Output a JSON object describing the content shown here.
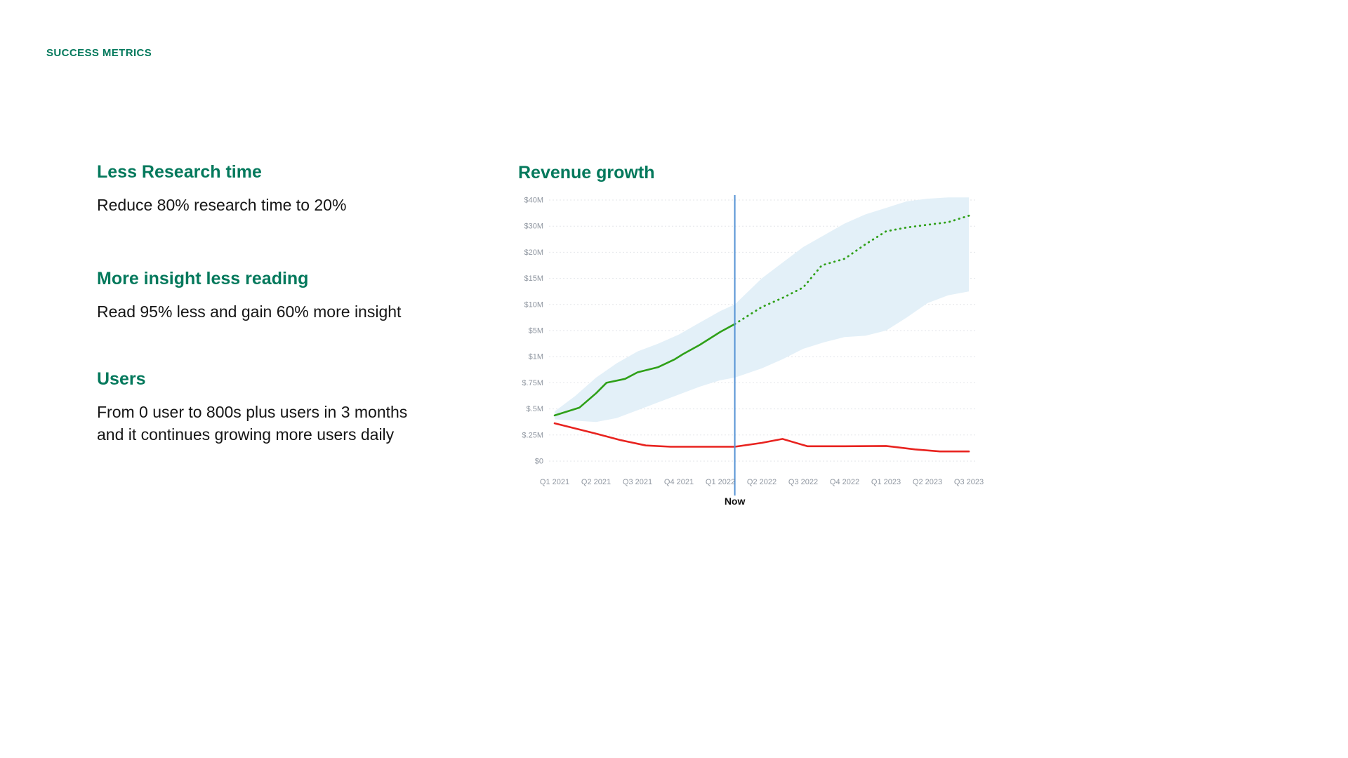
{
  "slide": {
    "eyebrow": "SUCCESS METRICS",
    "metrics": [
      {
        "title": "Less Research time",
        "body": "Reduce 80% research time to 20%"
      },
      {
        "title": "More insight less reading",
        "body": "Read 95% less and gain 60% more insight"
      },
      {
        "title": "Users",
        "body": "From 0 user to 800s plus users in 3 months and it continues growing more users daily"
      }
    ],
    "chart_title": "Revenue growth"
  },
  "colors": {
    "accent": "#04795c",
    "text": "#161616",
    "axis_label": "#9097a1",
    "grid": "#e3e6e9",
    "band_fill": "#e3f0f8",
    "green_line": "#2fa018",
    "red_line": "#e8231f",
    "now_line": "#5693d4",
    "now_label": "#111111"
  },
  "chart_data": {
    "type": "line",
    "title": "Revenue growth",
    "categories": [
      "Q1 2021",
      "Q2 2021",
      "Q3 2021",
      "Q4 2021",
      "Q1 2022",
      "Q2 2022",
      "Q3 2022",
      "Q4 2022",
      "Q1 2023",
      "Q2 2023",
      "Q3 2023"
    ],
    "y_tick_labels": [
      "$0",
      "$.25M",
      "$.5M",
      "$.75M",
      "$1M",
      "$5M",
      "$10M",
      "$15M",
      "$20M",
      "$30M",
      "$40M"
    ],
    "y_axis_note": "non-linear ordinal dollar axis; series point values below are expressed in tick units (0 = $0 tick ... 10 = $40M tick)",
    "grid": true,
    "legend": "none (series are unlabeled in the chart)",
    "now_marker": {
      "label": "Now",
      "x_index": 4.35
    },
    "series": [
      {
        "name": "green-line-actual",
        "style": "solid",
        "color_key": "green_line",
        "width": 2.6,
        "points": [
          [
            0,
            1.75
          ],
          [
            0.6,
            2.05
          ],
          [
            1.0,
            2.6
          ],
          [
            1.25,
            3.0
          ],
          [
            1.7,
            3.15
          ],
          [
            2.0,
            3.4
          ],
          [
            2.5,
            3.6
          ],
          [
            2.9,
            3.9
          ],
          [
            3.1,
            4.1
          ],
          [
            3.5,
            4.45
          ],
          [
            4.0,
            4.95
          ],
          [
            4.35,
            5.25
          ]
        ]
      },
      {
        "name": "green-line-projected",
        "style": "dotted",
        "color_key": "green_line",
        "width": 2.8,
        "points": [
          [
            4.35,
            5.25
          ],
          [
            5.0,
            5.9
          ],
          [
            5.5,
            6.25
          ],
          [
            6.0,
            6.65
          ],
          [
            6.45,
            7.5
          ],
          [
            7.0,
            7.75
          ],
          [
            7.5,
            8.3
          ],
          [
            8.0,
            8.8
          ],
          [
            8.5,
            8.95
          ],
          [
            9.0,
            9.05
          ],
          [
            9.5,
            9.15
          ],
          [
            10,
            9.4
          ]
        ]
      },
      {
        "name": "red-line",
        "style": "solid",
        "color_key": "red_line",
        "width": 2.6,
        "points": [
          [
            0,
            1.45
          ],
          [
            0.5,
            1.25
          ],
          [
            1.0,
            1.05
          ],
          [
            1.6,
            0.8
          ],
          [
            2.2,
            0.6
          ],
          [
            2.8,
            0.55
          ],
          [
            4.35,
            0.55
          ],
          [
            5.0,
            0.7
          ],
          [
            5.5,
            0.85
          ],
          [
            6.1,
            0.57
          ],
          [
            7.0,
            0.57
          ],
          [
            8.0,
            0.58
          ],
          [
            8.7,
            0.45
          ],
          [
            9.3,
            0.37
          ],
          [
            10,
            0.37
          ]
        ]
      }
    ],
    "band": {
      "name": "projection-range-band",
      "upper": [
        [
          0,
          1.9
        ],
        [
          0.5,
          2.5
        ],
        [
          1.0,
          3.2
        ],
        [
          1.5,
          3.75
        ],
        [
          2.0,
          4.2
        ],
        [
          2.5,
          4.5
        ],
        [
          3.0,
          4.85
        ],
        [
          3.5,
          5.3
        ],
        [
          4.0,
          5.75
        ],
        [
          4.35,
          6.0
        ],
        [
          5.0,
          7.0
        ],
        [
          5.5,
          7.6
        ],
        [
          6.0,
          8.2
        ],
        [
          6.5,
          8.65
        ],
        [
          7.0,
          9.1
        ],
        [
          7.5,
          9.45
        ],
        [
          8.0,
          9.7
        ],
        [
          8.5,
          9.95
        ],
        [
          9.0,
          10.05
        ],
        [
          9.5,
          10.1
        ],
        [
          10,
          10.1
        ]
      ],
      "lower": [
        [
          0,
          1.6
        ],
        [
          1.0,
          1.5
        ],
        [
          1.5,
          1.65
        ],
        [
          2.0,
          1.95
        ],
        [
          2.5,
          2.25
        ],
        [
          3.0,
          2.55
        ],
        [
          3.5,
          2.85
        ],
        [
          4.0,
          3.1
        ],
        [
          4.35,
          3.2
        ],
        [
          5.0,
          3.55
        ],
        [
          5.5,
          3.9
        ],
        [
          6.0,
          4.3
        ],
        [
          6.5,
          4.55
        ],
        [
          7.0,
          4.75
        ],
        [
          7.5,
          4.8
        ],
        [
          8.0,
          5.0
        ],
        [
          8.5,
          5.5
        ],
        [
          9.0,
          6.05
        ],
        [
          9.5,
          6.35
        ],
        [
          10,
          6.5
        ]
      ]
    },
    "approx_values_usd_m": {
      "note": "approximate dollar values read at each quarter",
      "green_solid_then_dotted": [
        0.44,
        0.65,
        0.85,
        0.97,
        4.9,
        9.0,
        13.0,
        19.0,
        28.0,
        30.5,
        34.0
      ],
      "red": [
        0.36,
        0.26,
        0.17,
        0.14,
        0.14,
        0.19,
        0.15,
        0.15,
        0.15,
        0.1,
        0.09
      ]
    }
  }
}
